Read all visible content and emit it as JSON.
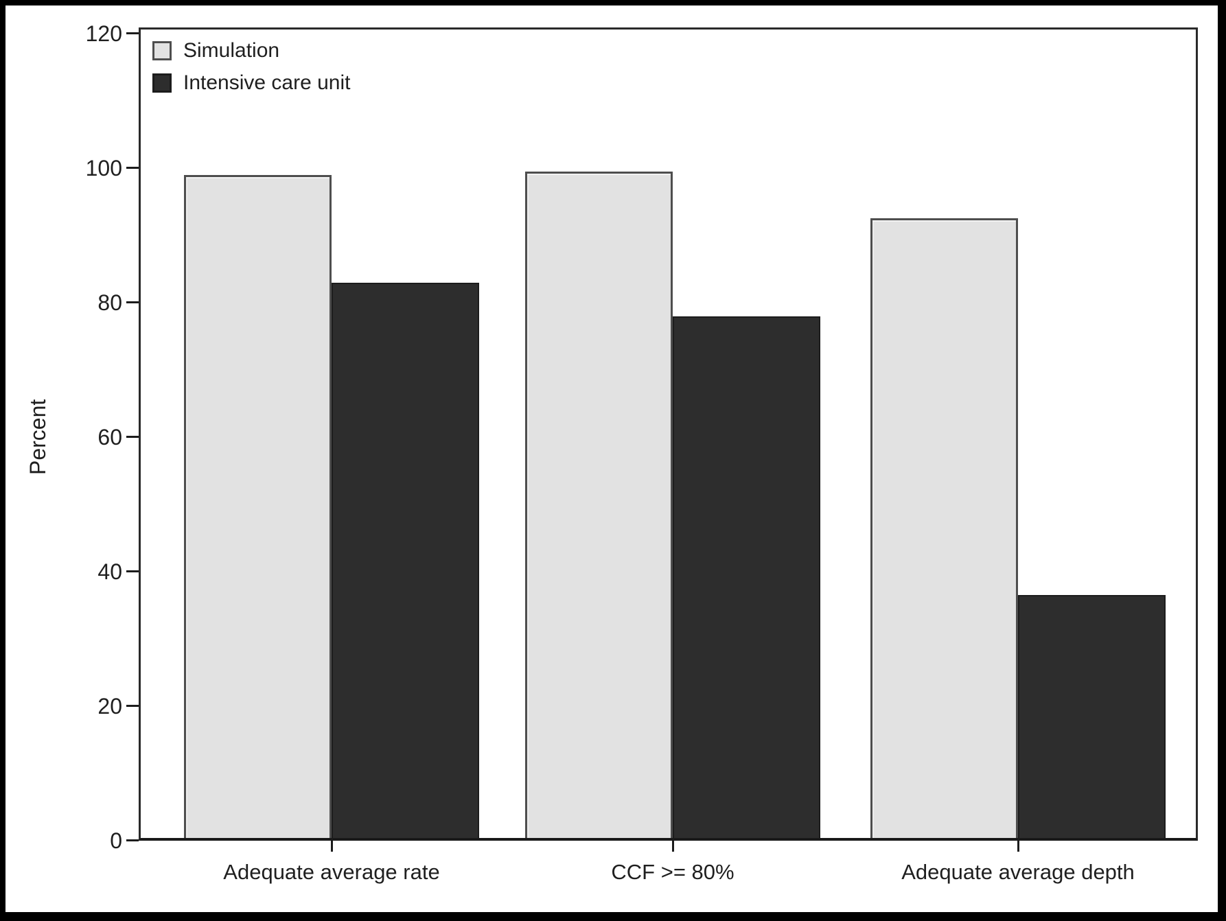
{
  "chart_data": {
    "type": "bar",
    "title": "",
    "categories": [
      "Adequate average rate",
      "CCF >= 80%",
      "Adequate average depth"
    ],
    "series": [
      {
        "name": "Simulation",
        "values": [
          99,
          99.5,
          92.5
        ],
        "fill": "#e2e2e2",
        "stroke": "#4e4e4e"
      },
      {
        "name": "Intensive care unit",
        "values": [
          83,
          78,
          36.5
        ],
        "fill": "#2d2d2d",
        "stroke": "#1c1c1c"
      }
    ],
    "xlabel": "",
    "ylabel": "Percent",
    "ylim": [
      0,
      120
    ],
    "yticks": [
      0,
      20,
      40,
      60,
      80,
      100,
      120
    ],
    "grid": false,
    "legend_position": "top-left-inside"
  },
  "colors": {
    "background": "#ffffff",
    "outer_border": "#000000",
    "axis": "#1c1c1c",
    "text": "#1f1f1f"
  }
}
